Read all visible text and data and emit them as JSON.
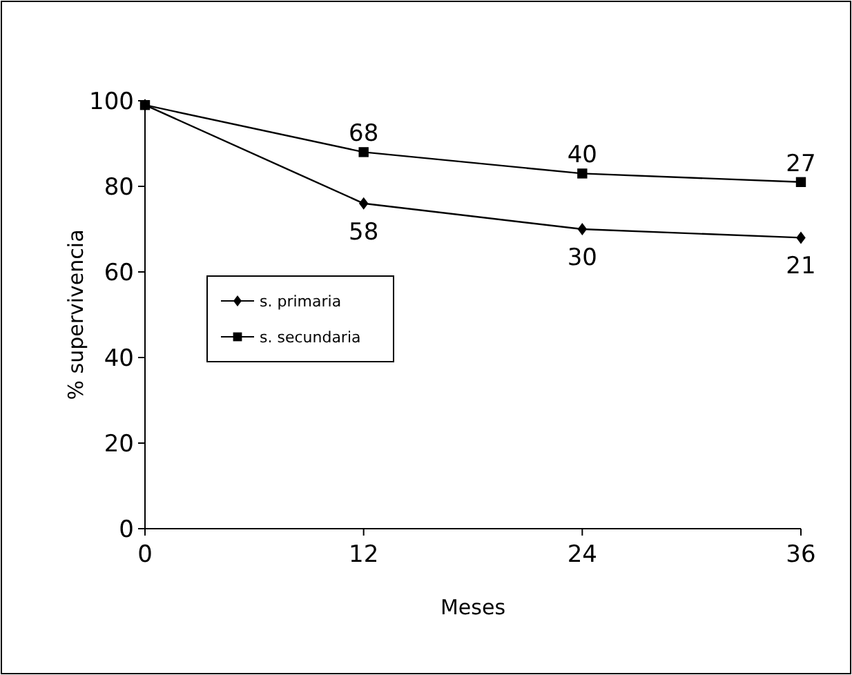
{
  "chart_data": {
    "type": "line",
    "xlabel": "Meses",
    "ylabel": "% supervivencia",
    "x": [
      0,
      12,
      24,
      36
    ],
    "series": [
      {
        "name": "s. primaria",
        "color": "#000000",
        "marker": "diamond",
        "values": [
          99,
          76,
          70,
          68
        ]
      },
      {
        "name": "s. secundaria",
        "color": "#000000",
        "marker": "square",
        "values": [
          99,
          88,
          83,
          81
        ]
      }
    ],
    "xlim": [
      0,
      36
    ],
    "xticks": [
      0,
      12,
      24,
      36
    ],
    "ylim": [
      0,
      100
    ],
    "yticks": [
      0,
      20,
      40,
      60,
      80,
      100
    ],
    "legend": "left",
    "grid": false,
    "annotations": [
      {
        "text": "68",
        "x": 12,
        "y": 88
      },
      {
        "text": "40",
        "x": 24,
        "y": 83
      },
      {
        "text": "27",
        "x": 36,
        "y": 81
      },
      {
        "text": "58",
        "x": 12,
        "y": 76
      },
      {
        "text": "30",
        "x": 24,
        "y": 70
      },
      {
        "text": "21",
        "x": 36,
        "y": 68
      }
    ]
  }
}
